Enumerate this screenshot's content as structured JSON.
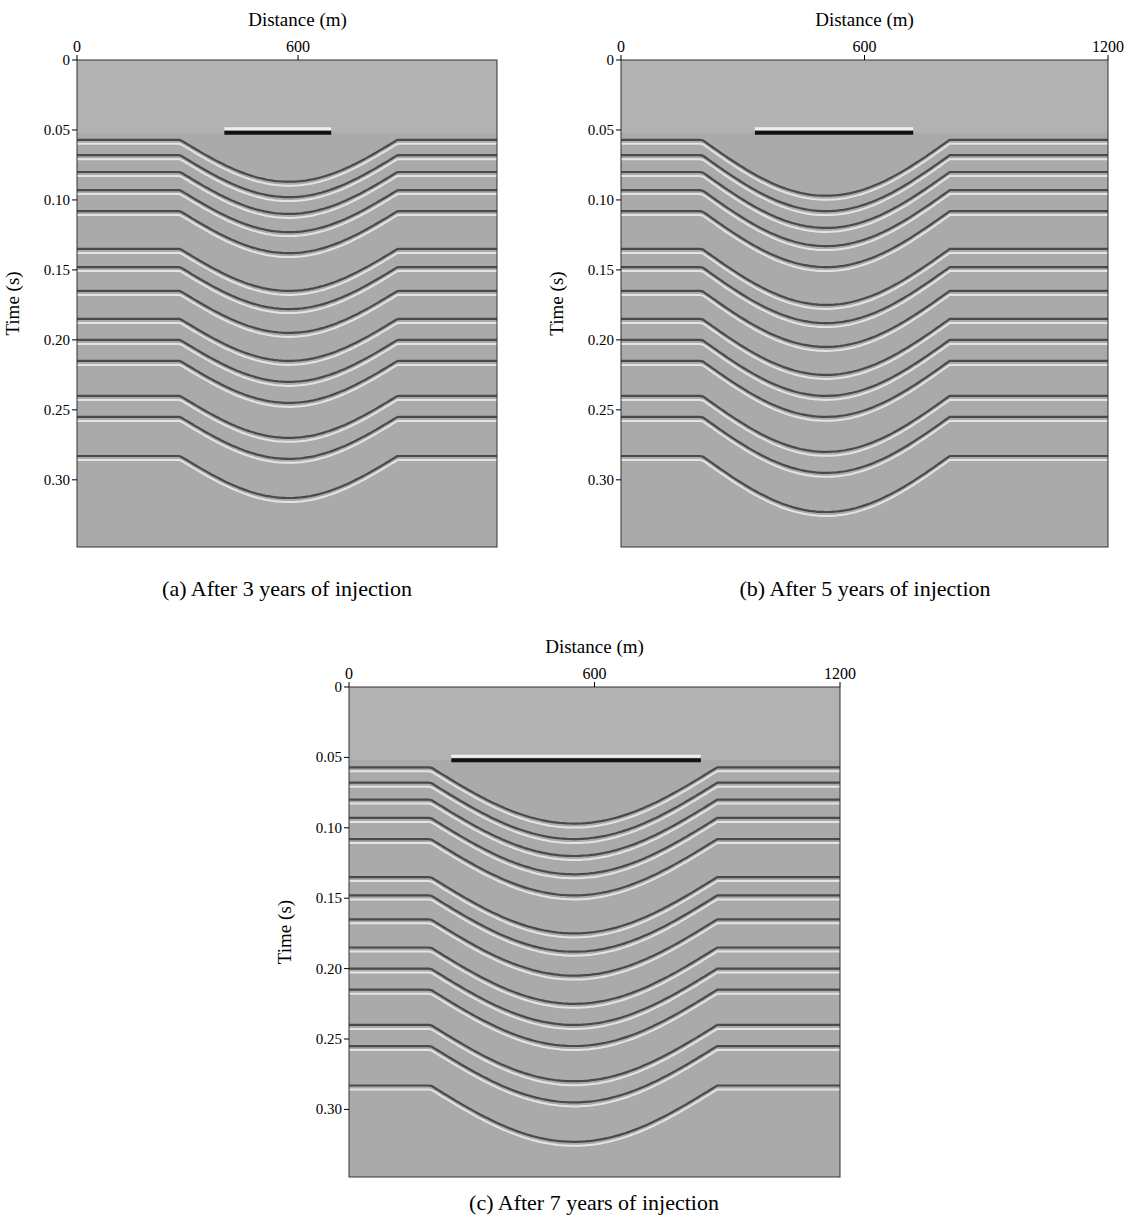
{
  "chart_data": [
    {
      "type": "image",
      "title": "(a) After 3 years of injection",
      "x_label": "Distance (m)",
      "y_label": "Time (s)",
      "xlim": [
        0,
        1140
      ],
      "ylim": [
        0,
        0.348
      ],
      "xticks": [
        0,
        600
      ],
      "yticks": [
        0,
        0.05,
        {
          "value": 0.1,
          "label": "0.10"
        },
        0.15,
        {
          "value": 0.2,
          "label": "0.20"
        },
        0.25,
        {
          "value": 0.3,
          "label": "0.30"
        }
      ],
      "events": [
        0.057,
        0.068,
        0.08,
        0.093,
        0.108,
        0.135,
        0.148,
        0.165,
        0.185,
        0.2,
        0.215,
        0.24,
        0.255,
        0.283
      ],
      "plume": {
        "x": [
          280,
          870
        ],
        "sag": 0.03
      },
      "cap": {
        "x": [
          400,
          690
        ],
        "t": 0.052
      }
    },
    {
      "type": "image",
      "title": "(b) After 5 years of injection",
      "x_label": "Distance (m)",
      "y_label": "Time (s)",
      "xlim": [
        0,
        1200
      ],
      "ylim": [
        0,
        0.348
      ],
      "xticks": [
        0,
        600,
        1200
      ],
      "yticks": [
        0,
        0.05,
        {
          "value": 0.1,
          "label": "0.10"
        },
        0.15,
        {
          "value": 0.2,
          "label": "0.20"
        },
        0.25,
        {
          "value": 0.3,
          "label": "0.30"
        }
      ],
      "events": [
        0.057,
        0.068,
        0.08,
        0.093,
        0.108,
        0.135,
        0.148,
        0.165,
        0.185,
        0.2,
        0.215,
        0.24,
        0.255,
        0.283
      ],
      "plume": {
        "x": [
          200,
          810
        ],
        "sag": 0.04
      },
      "cap": {
        "x": [
          330,
          720
        ],
        "t": 0.052
      }
    },
    {
      "type": "image",
      "title": "(c) After 7 years of injection",
      "x_label": "Distance (m)",
      "y_label": "Time (s)",
      "xlim": [
        0,
        1200
      ],
      "ylim": [
        0,
        0.348
      ],
      "xticks": [
        0,
        600,
        1200
      ],
      "yticks": [
        0,
        0.05,
        {
          "value": 0.1,
          "label": "0.10"
        },
        0.15,
        {
          "value": 0.2,
          "label": "0.20"
        },
        0.25,
        {
          "value": 0.3,
          "label": "0.30"
        }
      ],
      "events": [
        0.057,
        0.068,
        0.08,
        0.093,
        0.108,
        0.135,
        0.148,
        0.165,
        0.185,
        0.2,
        0.215,
        0.24,
        0.255,
        0.283
      ],
      "plume": {
        "x": [
          200,
          900
        ],
        "sag": 0.04
      },
      "cap": {
        "x": [
          250,
          860
        ],
        "t": 0.052
      }
    }
  ]
}
